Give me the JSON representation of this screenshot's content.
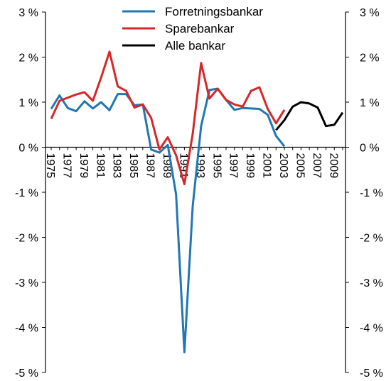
{
  "chart_data": {
    "type": "line",
    "title": "",
    "xlabel": "",
    "ylabel": "",
    "ylim": [
      -5,
      3
    ],
    "yticks": [
      3,
      2,
      1,
      0,
      -1,
      -2,
      -3,
      -4,
      -5
    ],
    "ytick_labels": [
      "3 %",
      "2 %",
      "1 %",
      "0 %",
      "-1 %",
      "-2 %",
      "-3 %",
      "-4 %",
      "-5 %"
    ],
    "xlim": [
      1975,
      2010
    ],
    "xtick_labels": [
      "1975",
      "1977",
      "1979",
      "1981",
      "1983",
      "1985",
      "1987",
      "1989",
      "1991",
      "1993",
      "1995",
      "1997",
      "1999",
      "2001",
      "2003",
      "2005",
      "2007",
      "2009"
    ],
    "grid": false,
    "legend": "top-center",
    "dual_y_axis": true,
    "series": [
      {
        "name": "Forretningsbankar",
        "color": "#1F77B4",
        "x": [
          1975,
          1976,
          1977,
          1978,
          1979,
          1980,
          1981,
          1982,
          1983,
          1984,
          1985,
          1986,
          1987,
          1988,
          1989,
          1990,
          1991,
          1992,
          1993,
          1994,
          1995,
          1996,
          1997,
          1998,
          1999,
          2000,
          2001,
          2002,
          2003
        ],
        "values": [
          0.85,
          1.15,
          0.87,
          0.8,
          1.02,
          0.86,
          1.0,
          0.82,
          1.18,
          1.18,
          0.93,
          0.95,
          -0.05,
          -0.12,
          0.05,
          -1.05,
          -4.55,
          -1.3,
          0.47,
          1.27,
          1.3,
          1.05,
          0.83,
          0.87,
          0.86,
          0.85,
          0.72,
          0.25,
          0.02
        ]
      },
      {
        "name": "Sparebankar",
        "color": "#D62728",
        "x": [
          1975,
          1976,
          1977,
          1978,
          1979,
          1980,
          1981,
          1982,
          1983,
          1984,
          1985,
          1986,
          1987,
          1988,
          1989,
          1990,
          1991,
          1992,
          1993,
          1994,
          1995,
          1996,
          1997,
          1998,
          1999,
          2000,
          2001,
          2002,
          2003
        ],
        "values": [
          0.63,
          1.03,
          1.1,
          1.17,
          1.22,
          1.03,
          1.55,
          2.12,
          1.35,
          1.25,
          0.88,
          0.95,
          0.65,
          -0.05,
          0.22,
          -0.18,
          -0.82,
          0.3,
          1.87,
          1.08,
          1.3,
          1.05,
          0.95,
          0.9,
          1.25,
          1.33,
          0.85,
          0.53,
          0.83
        ]
      },
      {
        "name": "Alle bankar",
        "color": "#000000",
        "x": [
          2002,
          2003,
          2004,
          2005,
          2006,
          2007,
          2008,
          2009,
          2010
        ],
        "values": [
          0.38,
          0.6,
          0.9,
          1.0,
          0.97,
          0.88,
          0.47,
          0.5,
          0.77
        ]
      }
    ]
  }
}
